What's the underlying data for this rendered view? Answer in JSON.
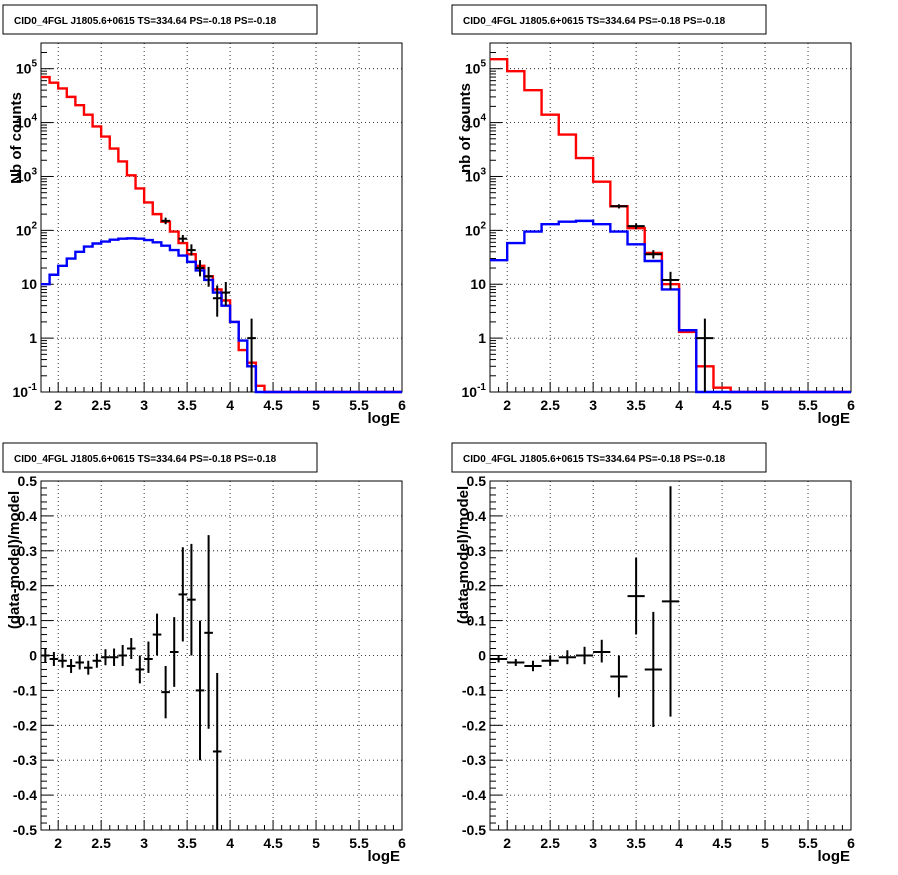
{
  "colors": {
    "model_total": "#ff0000",
    "model_source": "#0000ff",
    "data": "#000000"
  },
  "chart_data": [
    {
      "type": "line",
      "title": "CID0_4FGL J1805.6+0615 TS=334.64 PS=-0.18 PS=-0.18",
      "xlabel": "logE",
      "ylabel": "Nb of counts",
      "xlim": [
        1.8,
        6.0
      ],
      "ylim": [
        0.1,
        300000
      ],
      "log_y": true,
      "grid": true,
      "x_ticks": [
        "2",
        "2.5",
        "3",
        "3.5",
        "4",
        "4.5",
        "5",
        "5.5",
        "6"
      ],
      "y_ticks": [
        "10^{-1}",
        "1",
        "10",
        "10^{2}",
        "10^{3}",
        "10^{4}",
        "10^{5}"
      ],
      "bin_edges": [
        1.8,
        1.9,
        2.0,
        2.1,
        2.2,
        2.3,
        2.4,
        2.5,
        2.6,
        2.7,
        2.8,
        2.9,
        3.0,
        3.1,
        3.2,
        3.3,
        3.4,
        3.5,
        3.6,
        3.7,
        3.8,
        3.9,
        4.0,
        4.1,
        4.2,
        4.3,
        4.4,
        4.5,
        4.6,
        4.7,
        4.8,
        4.9,
        5.0,
        5.1,
        5.2,
        5.3,
        5.4,
        5.5,
        5.6,
        5.7,
        5.8,
        5.9,
        6.0
      ],
      "series": [
        {
          "name": "",
          "role": "model_total",
          "values": [
            70000,
            55000,
            43000,
            30000,
            21000,
            14000,
            8500,
            5500,
            3300,
            1900,
            1050,
            600,
            330,
            200,
            145,
            95,
            58,
            36,
            22,
            14,
            8,
            5,
            2,
            0.6,
            0.35,
            0.13,
            0.1,
            0.1,
            0.1,
            0.1,
            0.1,
            0.1,
            0.1,
            0.1,
            0.1,
            0.1,
            0.1,
            0.1,
            0.1,
            0.1,
            0.1,
            0.1
          ]
        },
        {
          "name": "",
          "role": "model_source",
          "values": [
            10,
            15,
            22,
            30,
            40,
            50,
            57,
            62,
            67,
            70,
            71,
            70,
            66,
            60,
            52,
            43,
            34,
            26,
            18,
            12,
            7,
            4,
            2,
            0.9,
            0.3,
            0.1,
            0.1,
            0.1,
            0.1,
            0.1,
            0.1,
            0.1,
            0.1,
            0.1,
            0.1,
            0.1,
            0.1,
            0.1,
            0.1,
            0.1,
            0.1,
            0.1
          ]
        }
      ],
      "points": [
        {
          "x": 3.25,
          "y": 150,
          "xerr": 0.05,
          "ylo": 130,
          "yhi": 172
        },
        {
          "x": 3.45,
          "y": 70,
          "xerr": 0.05,
          "ylo": 60,
          "yhi": 82
        },
        {
          "x": 3.55,
          "y": 43,
          "xerr": 0.05,
          "ylo": 34,
          "yhi": 55
        },
        {
          "x": 3.65,
          "y": 20,
          "xerr": 0.05,
          "ylo": 14,
          "yhi": 28
        },
        {
          "x": 3.75,
          "y": 14,
          "xerr": 0.05,
          "ylo": 9,
          "yhi": 21
        },
        {
          "x": 3.85,
          "y": 5.5,
          "xerr": 0.05,
          "ylo": 2.5,
          "yhi": 9.5
        },
        {
          "x": 3.95,
          "y": 7,
          "xerr": 0.05,
          "ylo": 4,
          "yhi": 11
        },
        {
          "x": 4.25,
          "y": 1,
          "xerr": 0.05,
          "ylo": 0.1,
          "yhi": 2.3
        }
      ]
    },
    {
      "type": "line",
      "title": "CID0_4FGL J1805.6+0615 TS=334.64 PS=-0.18 PS=-0.18",
      "xlabel": "logE",
      "ylabel": "nb of counts",
      "xlim": [
        1.8,
        6.0
      ],
      "ylim": [
        0.1,
        300000
      ],
      "log_y": true,
      "grid": true,
      "x_ticks": [
        "2",
        "2.5",
        "3",
        "3.5",
        "4",
        "4.5",
        "5",
        "5.5",
        "6"
      ],
      "y_ticks": [
        "10^{-1}",
        "1",
        "10",
        "10^{2}",
        "10^{3}",
        "10^{4}",
        "10^{5}"
      ],
      "bin_edges": [
        1.8,
        2.0,
        2.2,
        2.4,
        2.6,
        2.8,
        3.0,
        3.2,
        3.4,
        3.6,
        3.8,
        4.0,
        4.2,
        4.4,
        4.6,
        4.8,
        5.0,
        5.2,
        5.4,
        5.6,
        5.8,
        6.0
      ],
      "series": [
        {
          "name": "",
          "role": "model_total",
          "values": [
            150000,
            90000,
            40000,
            14000,
            6000,
            2200,
            800,
            280,
            110,
            38,
            10,
            1.3,
            0.3,
            0.12,
            0.1,
            0.1,
            0.1,
            0.1,
            0.1,
            0.1,
            0.1
          ]
        },
        {
          "name": "",
          "role": "model_source",
          "values": [
            28,
            58,
            95,
            130,
            145,
            150,
            130,
            95,
            55,
            27,
            8,
            1.4,
            0.1,
            0.1,
            0.1,
            0.1,
            0.1,
            0.1,
            0.1,
            0.1,
            0.1
          ]
        }
      ],
      "points": [
        {
          "x": 3.3,
          "y": 280,
          "xerr": 0.1,
          "ylo": 255,
          "yhi": 305
        },
        {
          "x": 3.5,
          "y": 120,
          "xerr": 0.1,
          "ylo": 105,
          "yhi": 135
        },
        {
          "x": 3.7,
          "y": 36,
          "xerr": 0.1,
          "ylo": 30,
          "yhi": 43
        },
        {
          "x": 3.9,
          "y": 12,
          "xerr": 0.1,
          "ylo": 8,
          "yhi": 17
        },
        {
          "x": 4.3,
          "y": 1,
          "xerr": 0.1,
          "ylo": 0.1,
          "yhi": 2.3
        }
      ]
    },
    {
      "type": "scatter",
      "title": "CID0_4FGL J1805.6+0615 TS=334.64 PS=-0.18 PS=-0.18",
      "xlabel": "logE",
      "ylabel": "(data-model)/model",
      "xlim": [
        1.8,
        6.0
      ],
      "ylim": [
        -0.5,
        0.5
      ],
      "grid": true,
      "x_ticks": [
        "2",
        "2.5",
        "3",
        "3.5",
        "4",
        "4.5",
        "5",
        "5.5",
        "6"
      ],
      "y_ticks": [
        "-0.5",
        "-0.4",
        "-0.3",
        "-0.2",
        "-0.1",
        "0",
        "0.1",
        "0.2",
        "0.3",
        "0.4",
        "0.5"
      ],
      "points": [
        {
          "x": 1.85,
          "y": 0.0,
          "xerr": 0.05,
          "ylo": -0.02,
          "yhi": 0.02
        },
        {
          "x": 1.95,
          "y": -0.01,
          "xerr": 0.05,
          "ylo": -0.03,
          "yhi": 0.01
        },
        {
          "x": 2.05,
          "y": -0.015,
          "xerr": 0.05,
          "ylo": -0.035,
          "yhi": 0.005
        },
        {
          "x": 2.15,
          "y": -0.03,
          "xerr": 0.05,
          "ylo": -0.05,
          "yhi": -0.01
        },
        {
          "x": 2.25,
          "y": -0.02,
          "xerr": 0.05,
          "ylo": -0.04,
          "yhi": 0.0
        },
        {
          "x": 2.35,
          "y": -0.035,
          "xerr": 0.05,
          "ylo": -0.055,
          "yhi": -0.015
        },
        {
          "x": 2.45,
          "y": -0.015,
          "xerr": 0.05,
          "ylo": -0.035,
          "yhi": 0.005
        },
        {
          "x": 2.55,
          "y": -0.005,
          "xerr": 0.05,
          "ylo": -0.028,
          "yhi": 0.018
        },
        {
          "x": 2.65,
          "y": -0.005,
          "xerr": 0.05,
          "ylo": -0.03,
          "yhi": 0.02
        },
        {
          "x": 2.75,
          "y": 0.0,
          "xerr": 0.05,
          "ylo": -0.03,
          "yhi": 0.03
        },
        {
          "x": 2.85,
          "y": 0.02,
          "xerr": 0.05,
          "ylo": -0.01,
          "yhi": 0.05
        },
        {
          "x": 2.95,
          "y": -0.04,
          "xerr": 0.05,
          "ylo": -0.08,
          "yhi": 0.0
        },
        {
          "x": 3.05,
          "y": -0.01,
          "xerr": 0.05,
          "ylo": -0.05,
          "yhi": 0.04
        },
        {
          "x": 3.15,
          "y": 0.06,
          "xerr": 0.05,
          "ylo": 0.0,
          "yhi": 0.12
        },
        {
          "x": 3.25,
          "y": -0.105,
          "xerr": 0.05,
          "ylo": -0.18,
          "yhi": -0.03
        },
        {
          "x": 3.35,
          "y": 0.01,
          "xerr": 0.05,
          "ylo": -0.09,
          "yhi": 0.11
        },
        {
          "x": 3.45,
          "y": 0.175,
          "xerr": 0.05,
          "ylo": 0.04,
          "yhi": 0.31
        },
        {
          "x": 3.55,
          "y": 0.16,
          "xerr": 0.05,
          "ylo": 0.0,
          "yhi": 0.32
        },
        {
          "x": 3.65,
          "y": -0.1,
          "xerr": 0.05,
          "ylo": -0.3,
          "yhi": 0.1
        },
        {
          "x": 3.75,
          "y": 0.065,
          "xerr": 0.05,
          "ylo": -0.21,
          "yhi": 0.345
        },
        {
          "x": 3.85,
          "y": -0.275,
          "xerr": 0.05,
          "ylo": -0.5,
          "yhi": -0.05
        }
      ]
    },
    {
      "type": "scatter",
      "title": "CID0_4FGL J1805.6+0615 TS=334.64 PS=-0.18 PS=-0.18",
      "xlabel": "logE",
      "ylabel": "(data-model)/model",
      "xlim": [
        1.8,
        6.0
      ],
      "ylim": [
        -0.5,
        0.5
      ],
      "grid": true,
      "x_ticks": [
        "2",
        "2.5",
        "3",
        "3.5",
        "4",
        "4.5",
        "5",
        "5.5",
        "6"
      ],
      "y_ticks": [
        "-0.5",
        "-0.4",
        "-0.3",
        "-0.2",
        "-0.1",
        "0",
        "0.1",
        "0.2",
        "0.3",
        "0.4",
        "0.5"
      ],
      "points": [
        {
          "x": 1.9,
          "y": -0.01,
          "xerr": 0.1,
          "ylo": -0.02,
          "yhi": 0.0
        },
        {
          "x": 2.1,
          "y": -0.02,
          "xerr": 0.1,
          "ylo": -0.03,
          "yhi": -0.01
        },
        {
          "x": 2.3,
          "y": -0.03,
          "xerr": 0.1,
          "ylo": -0.045,
          "yhi": -0.015
        },
        {
          "x": 2.5,
          "y": -0.015,
          "xerr": 0.1,
          "ylo": -0.03,
          "yhi": 0.0
        },
        {
          "x": 2.7,
          "y": -0.005,
          "xerr": 0.1,
          "ylo": -0.025,
          "yhi": 0.015
        },
        {
          "x": 2.9,
          "y": 0.0,
          "xerr": 0.1,
          "ylo": -0.025,
          "yhi": 0.025
        },
        {
          "x": 3.1,
          "y": 0.01,
          "xerr": 0.1,
          "ylo": -0.02,
          "yhi": 0.045
        },
        {
          "x": 3.3,
          "y": -0.06,
          "xerr": 0.1,
          "ylo": -0.12,
          "yhi": 0.0
        },
        {
          "x": 3.5,
          "y": 0.17,
          "xerr": 0.1,
          "ylo": 0.06,
          "yhi": 0.28
        },
        {
          "x": 3.7,
          "y": -0.04,
          "xerr": 0.1,
          "ylo": -0.205,
          "yhi": 0.125
        },
        {
          "x": 3.9,
          "y": 0.155,
          "xerr": 0.1,
          "ylo": -0.175,
          "yhi": 0.485
        }
      ]
    }
  ]
}
